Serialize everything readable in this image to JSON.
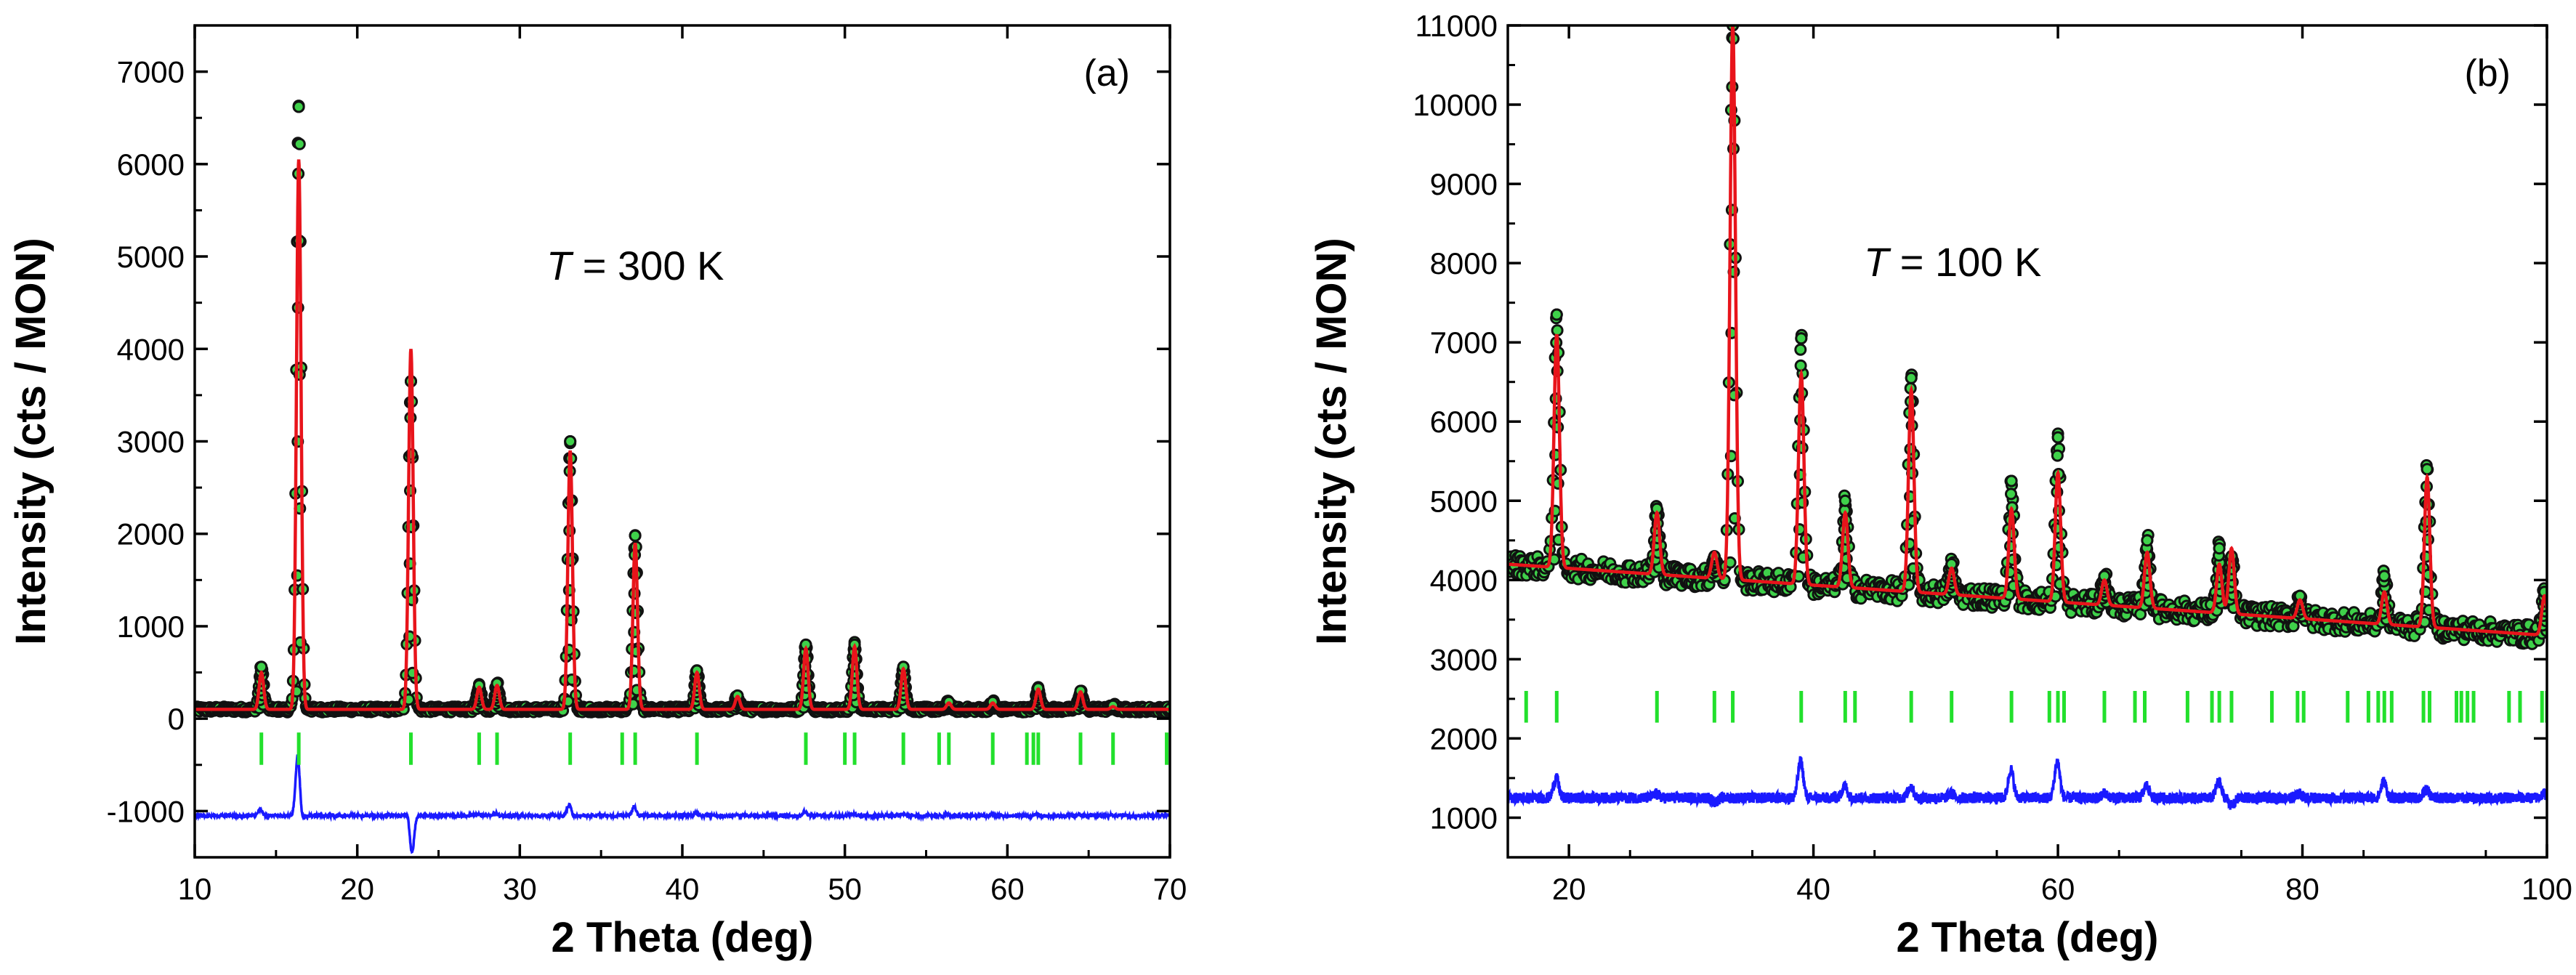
{
  "chart_data": [
    {
      "type": "scatter",
      "panel_label": "(a)",
      "annotation": {
        "symbol": "T",
        "rest": " = 300 K"
      },
      "xlabel": "2 Theta (deg)",
      "ylabel": "Intensity (cts / MON)",
      "xlim": [
        10,
        70
      ],
      "ylim": [
        -1500,
        7500
      ],
      "xticks": [
        10,
        20,
        30,
        40,
        50,
        60,
        70
      ],
      "yticks": [
        -1000,
        0,
        1000,
        2000,
        3000,
        4000,
        5000,
        6000,
        7000
      ],
      "background": 100,
      "difference_offset": -1050,
      "bragg_row": {
        "y_top": -150,
        "y_bottom": -500
      },
      "peaks": [
        {
          "x": 14.1,
          "obs": 560,
          "calc": 500
        },
        {
          "x": 16.4,
          "obs": 6620,
          "calc": 6050
        },
        {
          "x": 23.3,
          "obs": 3650,
          "calc": 4000
        },
        {
          "x": 27.5,
          "obs": 360,
          "calc": 340
        },
        {
          "x": 28.6,
          "obs": 380,
          "calc": 360
        },
        {
          "x": 33.1,
          "obs": 3000,
          "calc": 2900
        },
        {
          "x": 37.1,
          "obs": 1980,
          "calc": 1900
        },
        {
          "x": 40.9,
          "obs": 520,
          "calc": 500
        },
        {
          "x": 43.4,
          "obs": 250,
          "calc": 240
        },
        {
          "x": 47.6,
          "obs": 800,
          "calc": 760
        },
        {
          "x": 50.6,
          "obs": 800,
          "calc": 780
        },
        {
          "x": 53.6,
          "obs": 560,
          "calc": 540
        },
        {
          "x": 56.4,
          "obs": 180,
          "calc": 170
        },
        {
          "x": 59.1,
          "obs": 180,
          "calc": 170
        },
        {
          "x": 61.9,
          "obs": 330,
          "calc": 320
        },
        {
          "x": 64.5,
          "obs": 300,
          "calc": 290
        },
        {
          "x": 66.5,
          "obs": 140,
          "calc": 130
        }
      ],
      "bragg_positions": [
        14.1,
        16.4,
        23.3,
        27.5,
        28.6,
        33.1,
        36.3,
        37.1,
        40.9,
        47.6,
        50.0,
        50.6,
        53.6,
        55.8,
        56.4,
        59.1,
        61.2,
        61.6,
        61.9,
        64.5,
        66.5,
        69.8
      ]
    },
    {
      "type": "scatter",
      "panel_label": "(b)",
      "annotation": {
        "symbol": "T",
        "rest": " = 100 K"
      },
      "xlabel": "2 Theta (deg)",
      "ylabel": "Intensity (cts / MON)",
      "xlim": [
        15,
        100
      ],
      "ylim": [
        500,
        11000
      ],
      "xticks": [
        20,
        40,
        60,
        80,
        100
      ],
      "yticks": [
        1000,
        2000,
        3000,
        4000,
        5000,
        6000,
        7000,
        8000,
        9000,
        10000,
        11000
      ],
      "background_start": 4200,
      "background_end": 3300,
      "difference_offset": 1250,
      "bragg_row": {
        "y_top": 2600,
        "y_bottom": 2200
      },
      "peaks": [
        {
          "x": 19.0,
          "obs": 7350,
          "calc": 7100
        },
        {
          "x": 27.2,
          "obs": 4900,
          "calc": 4850
        },
        {
          "x": 31.9,
          "obs": 4300,
          "calc": 4350
        },
        {
          "x": 33.4,
          "obs": 11000,
          "calc": 11000
        },
        {
          "x": 39.0,
          "obs": 7050,
          "calc": 6600
        },
        {
          "x": 42.6,
          "obs": 5000,
          "calc": 4850
        },
        {
          "x": 48.0,
          "obs": 6550,
          "calc": 6400
        },
        {
          "x": 51.3,
          "obs": 4200,
          "calc": 4150
        },
        {
          "x": 56.2,
          "obs": 5250,
          "calc": 4900
        },
        {
          "x": 60.0,
          "obs": 5800,
          "calc": 5350
        },
        {
          "x": 63.8,
          "obs": 4050,
          "calc": 4000
        },
        {
          "x": 67.3,
          "obs": 4500,
          "calc": 4350
        },
        {
          "x": 73.2,
          "obs": 4400,
          "calc": 4200
        },
        {
          "x": 74.2,
          "obs": 4300,
          "calc": 4400
        },
        {
          "x": 79.8,
          "obs": 3800,
          "calc": 3750
        },
        {
          "x": 86.7,
          "obs": 4050,
          "calc": 3850
        },
        {
          "x": 90.2,
          "obs": 5400,
          "calc": 5300
        },
        {
          "x": 99.8,
          "obs": 3850,
          "calc": 3800
        }
      ],
      "bragg_positions": [
        16.5,
        19.0,
        27.2,
        31.9,
        33.4,
        39.0,
        42.6,
        43.4,
        48.0,
        51.3,
        56.2,
        59.3,
        60.0,
        60.5,
        63.8,
        66.3,
        67.1,
        70.6,
        72.6,
        73.2,
        74.2,
        77.5,
        79.6,
        80.1,
        83.7,
        85.4,
        86.2,
        86.7,
        87.3,
        89.9,
        90.4,
        92.6,
        93.0,
        93.5,
        94.0,
        96.9,
        97.8,
        99.6,
        100.0
      ]
    }
  ]
}
